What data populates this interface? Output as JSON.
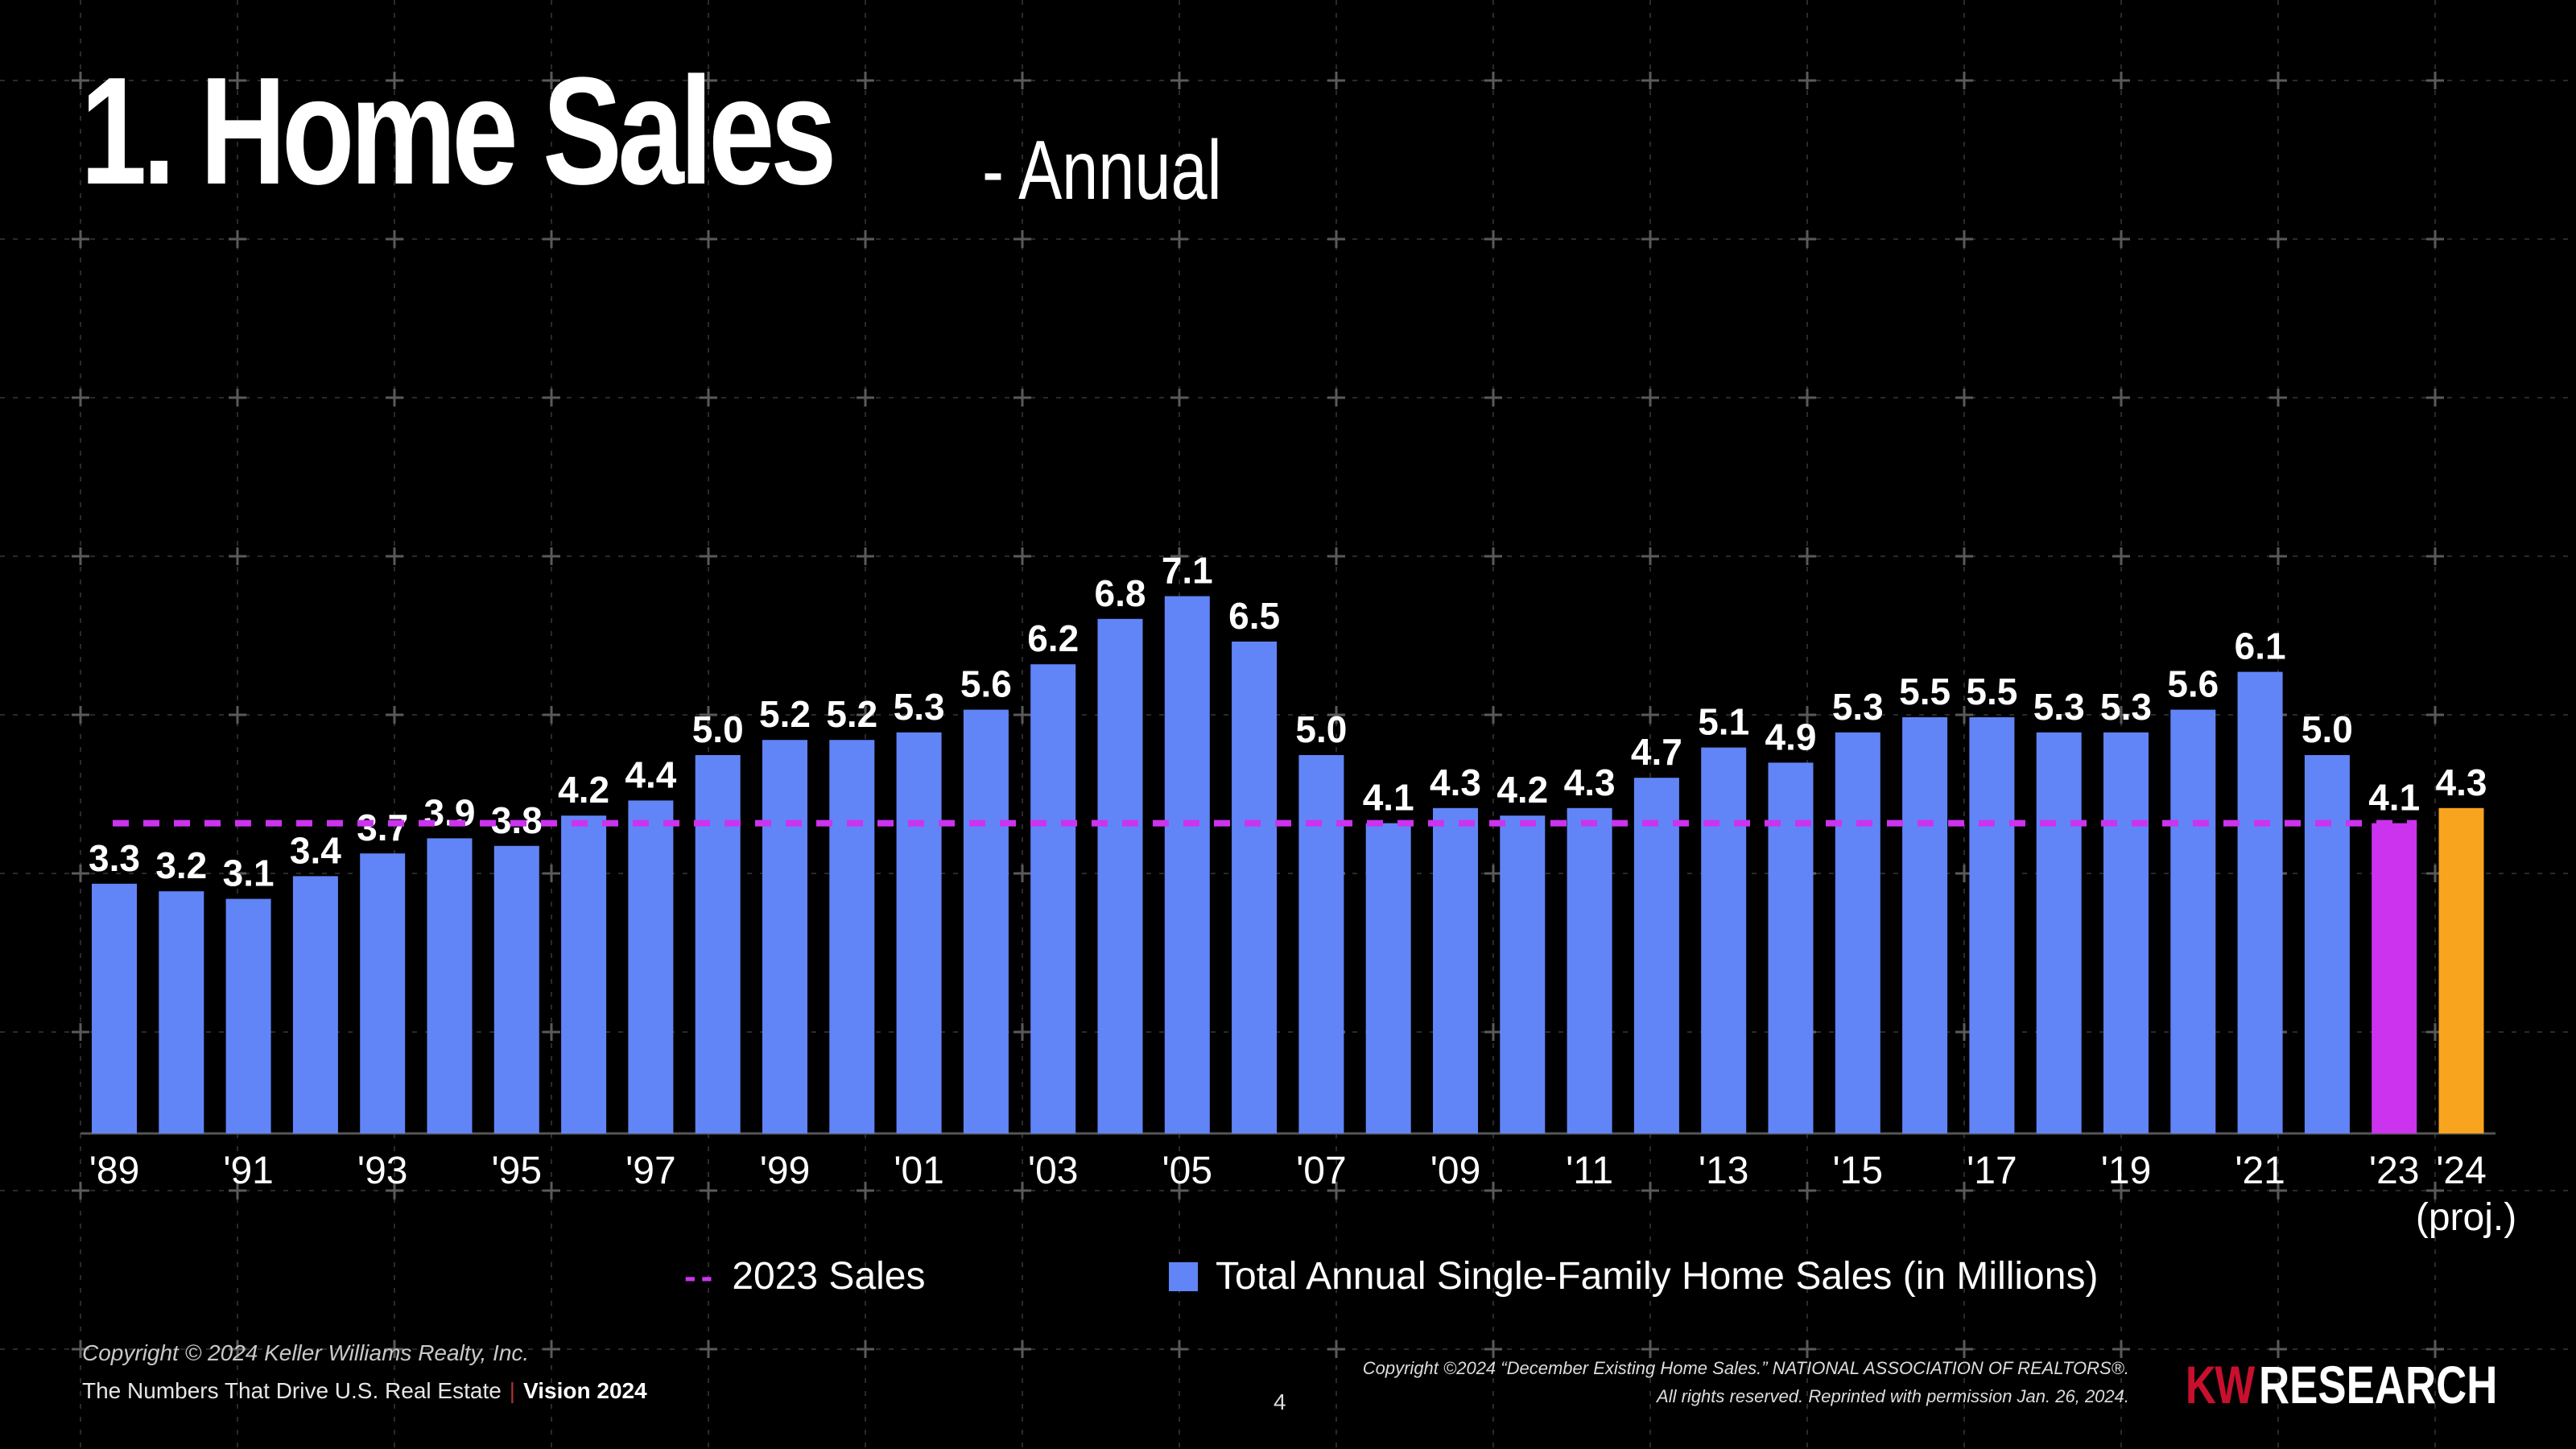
{
  "title": {
    "main": "1. Home Sales",
    "sub": "- Annual"
  },
  "colors": {
    "bar": "#6185f7",
    "bar_2023": "#cc33ee",
    "bar_2024": "#f9a41e",
    "reference_line": "#cc33ee",
    "axis": "#555555"
  },
  "chart_data": {
    "type": "bar",
    "title": "Total Annual Single-Family Home Sales (in Millions)",
    "categories": [
      "1989",
      "1990",
      "1991",
      "1992",
      "1993",
      "1994",
      "1995",
      "1996",
      "1997",
      "1998",
      "1999",
      "2000",
      "2001",
      "2002",
      "2003",
      "2004",
      "2005",
      "2006",
      "2007",
      "2008",
      "2009",
      "2010",
      "2011",
      "2012",
      "2013",
      "2014",
      "2015",
      "2016",
      "2017",
      "2018",
      "2019",
      "2020",
      "2021",
      "2022",
      "2023",
      "2024 (proj.)"
    ],
    "values": [
      3.3,
      3.2,
      3.1,
      3.4,
      3.7,
      3.9,
      3.8,
      4.2,
      4.4,
      5.0,
      5.2,
      5.2,
      5.3,
      5.6,
      6.2,
      6.8,
      7.1,
      6.5,
      5.0,
      4.1,
      4.3,
      4.2,
      4.3,
      4.7,
      5.1,
      4.9,
      5.3,
      5.5,
      5.5,
      5.3,
      5.3,
      5.6,
      6.1,
      5.0,
      4.1,
      4.3
    ],
    "value_labels": [
      "3.3",
      "3.2",
      "3.1",
      "3.4",
      "3.7",
      "3.9",
      "3.8",
      "4.2",
      "4.4",
      "5.0",
      "5.2",
      "5.2",
      "5.3",
      "5.6",
      "6.2",
      "6.8",
      "7.1",
      "6.5",
      "5.0",
      "4.1",
      "4.3",
      "4.2",
      "4.3",
      "4.7",
      "5.1",
      "4.9",
      "5.3",
      "5.5",
      "5.5",
      "5.3",
      "5.3",
      "5.6",
      "6.1",
      "5.0",
      "4.1",
      "4.3"
    ],
    "x_tick_labels": [
      "'89",
      "",
      "'91",
      "",
      "'93",
      "",
      "'95",
      "",
      "'97",
      "",
      "'99",
      "",
      "'01",
      "",
      "'03",
      "",
      "'05",
      "",
      "'07",
      "",
      "'09",
      "",
      "'11",
      "",
      "'13",
      "",
      "'15",
      "",
      "'17",
      "",
      "'19",
      "",
      "'21",
      "",
      "'23",
      "'24"
    ],
    "x_tick_sublabel": "(proj.)",
    "reference_line": {
      "name": "2023 Sales",
      "value": 4.1
    },
    "ylim": [
      0,
      7.6
    ],
    "xlabel": "",
    "ylabel": "",
    "grid": false
  },
  "legend": {
    "line_label": "2023 Sales",
    "bar_label": "Total Annual Single-Family Home Sales (in Millions)"
  },
  "footer": {
    "copyright": "Copyright © 2024 Keller Williams Realty, Inc.",
    "tagline": "The Numbers That Drive U.S. Real Estate",
    "separator": "|",
    "edition": "Vision 2024",
    "page_number": "4",
    "source_line1": "Copyright ©2024 “December Existing Home Sales.” NATIONAL ASSOCIATION OF REALTORS®.",
    "source_line2": "All rights reserved. Reprinted with permission Jan. 26, 2024.",
    "logo_kw": "KW",
    "logo_research": "RESEARCH"
  }
}
